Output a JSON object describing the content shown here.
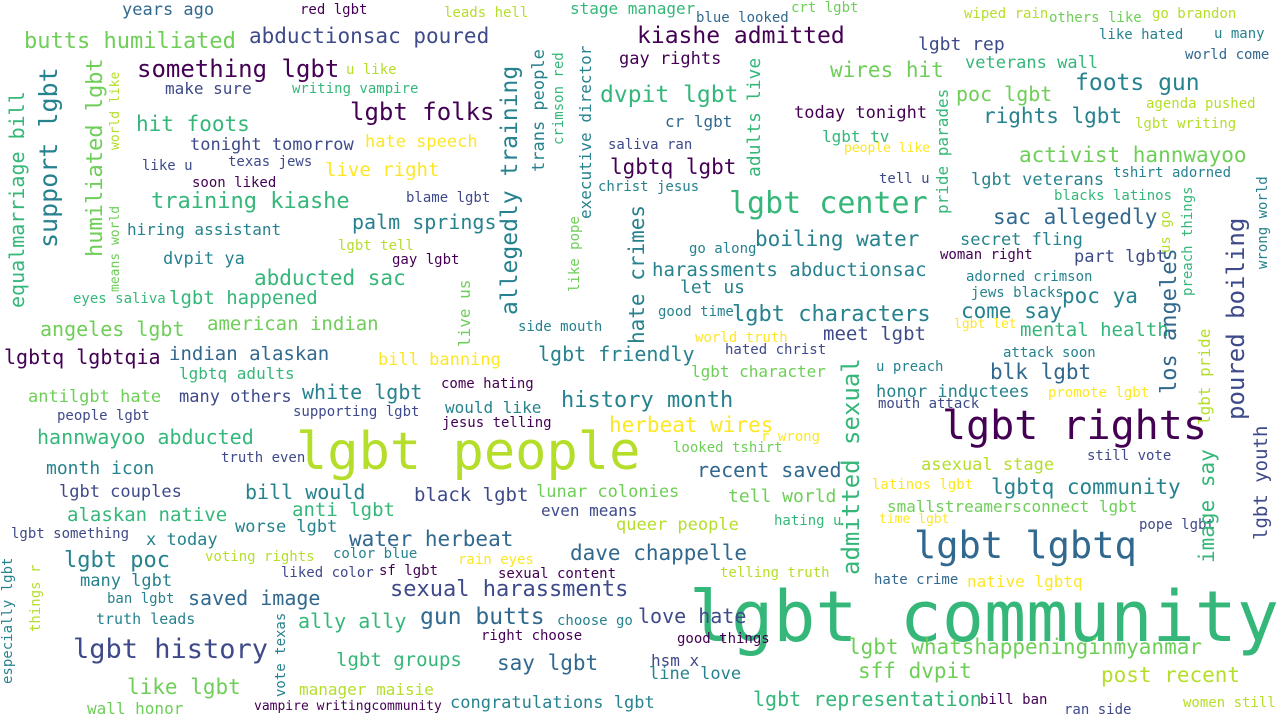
{
  "palette": {
    "purple": "#440154",
    "indigo": "#3e4a89",
    "blue": "#31688e",
    "teal": "#26828e",
    "green": "#35b779",
    "lime": "#6ece58",
    "yellowgreen": "#b5de2b",
    "yellow": "#fde725"
  },
  "words": [
    {
      "text": "lgbt community",
      "color": "#35b779"
    },
    {
      "text": "lgbt people",
      "color": "#b5de2b"
    },
    {
      "text": "lgbt rights",
      "color": "#440154"
    },
    {
      "text": "lgbt lgbtq",
      "color": "#31688e"
    },
    {
      "text": "lgbt center",
      "color": "#35b779"
    },
    {
      "text": "lgbt history",
      "color": "#3e4a89"
    },
    {
      "text": "kiashe admitted",
      "color": "#440154"
    },
    {
      "text": "something lgbt",
      "color": "#440154"
    },
    {
      "text": "butts humiliated",
      "color": "#6ece58"
    },
    {
      "text": "abductionsac poured",
      "color": "#3e4a89"
    },
    {
      "text": "lgbt folks",
      "color": "#440154"
    },
    {
      "text": "training kiashe",
      "color": "#35b779"
    },
    {
      "text": "dvpit lgbt",
      "color": "#35b779"
    },
    {
      "text": "lgbtq lgbt",
      "color": "#440154"
    },
    {
      "text": "harassments abductionsac",
      "color": "#26828e"
    },
    {
      "text": "lgbt characters",
      "color": "#26828e"
    },
    {
      "text": "history month",
      "color": "#26828e"
    },
    {
      "text": "sexual harassments",
      "color": "#3e4a89"
    },
    {
      "text": "gun butts",
      "color": "#31688e"
    },
    {
      "text": "water herbeat",
      "color": "#31688e"
    },
    {
      "text": "dave chappelle",
      "color": "#31688e"
    },
    {
      "text": "herbeat wires",
      "color": "#fde725"
    },
    {
      "text": "lgbt whatshappeninginmyanmar",
      "color": "#6ece58"
    },
    {
      "text": "sff dvpit",
      "color": "#6ece58"
    },
    {
      "text": "post recent",
      "color": "#b5de2b"
    },
    {
      "text": "lgbt representation",
      "color": "#35b779"
    },
    {
      "text": "lgbtq community",
      "color": "#26828e"
    },
    {
      "text": "blk lgbt",
      "color": "#31688e"
    },
    {
      "text": "abducted sac",
      "color": "#35b779"
    },
    {
      "text": "boiling water",
      "color": "#26828e"
    },
    {
      "text": "foots gun",
      "color": "#26828e"
    },
    {
      "text": "activist hannwayoo",
      "color": "#6ece58"
    },
    {
      "text": "sac allegedly",
      "color": "#31688e"
    },
    {
      "text": "wires hit",
      "color": "#6ece58"
    },
    {
      "text": "hit foots",
      "color": "#35b779"
    },
    {
      "text": "hannwayoo abducted",
      "color": "#35b779"
    },
    {
      "text": "lgbt poc",
      "color": "#26828e"
    },
    {
      "text": "say lgbt",
      "color": "#31688e"
    },
    {
      "text": "white lgbt",
      "color": "#26828e"
    },
    {
      "text": "palm springs",
      "color": "#26828e"
    },
    {
      "text": "lgbt happened",
      "color": "#35b779"
    },
    {
      "text": "american indian",
      "color": "#6ece58"
    },
    {
      "text": "indian alaskan",
      "color": "#31688e"
    },
    {
      "text": "lgbtq lgbtqia",
      "color": "#440154"
    },
    {
      "text": "angeles lgbt",
      "color": "#6ece58"
    },
    {
      "text": "alaskan native",
      "color": "#35b779"
    },
    {
      "text": "bill would",
      "color": "#26828e"
    },
    {
      "text": "recent saved",
      "color": "#31688e"
    },
    {
      "text": "mental health",
      "color": "#35b779"
    },
    {
      "text": "poc ya",
      "color": "#26828e"
    },
    {
      "text": "come say",
      "color": "#26828e"
    },
    {
      "text": "poc lgbt",
      "color": "#6ece58"
    },
    {
      "text": "rights lgbt",
      "color": "#26828e"
    },
    {
      "text": "lgbt friendly",
      "color": "#26828e"
    },
    {
      "text": "saved image",
      "color": "#31688e"
    },
    {
      "text": "lgbt groups",
      "color": "#35b779"
    },
    {
      "text": "like lgbt",
      "color": "#6ece58"
    },
    {
      "text": "ally ally",
      "color": "#35b779"
    },
    {
      "text": "love hate",
      "color": "#3e4a89"
    },
    {
      "text": "black lgbt",
      "color": "#3e4a89"
    },
    {
      "text": "anti lgbt",
      "color": "#35b779"
    },
    {
      "text": "tell world",
      "color": "#6ece58"
    },
    {
      "text": "lgbt veterans",
      "color": "#26828e"
    },
    {
      "text": "live right",
      "color": "#fde725"
    },
    {
      "text": "lgbt rep",
      "color": "#3e4a89"
    },
    {
      "text": "secret fling",
      "color": "#26828e"
    },
    {
      "text": "part lgbt",
      "color": "#3e4a89"
    },
    {
      "text": "meet lgbt",
      "color": "#3e4a89"
    },
    {
      "text": "today tonight",
      "color": "#440154"
    },
    {
      "text": "veterans wall",
      "color": "#35b779"
    },
    {
      "text": "hate speech",
      "color": "#fde725"
    },
    {
      "text": "gay rights",
      "color": "#440154"
    },
    {
      "text": "let us",
      "color": "#26828e"
    },
    {
      "text": "honor inductees",
      "color": "#26828e"
    },
    {
      "text": "asexual stage",
      "color": "#b5de2b"
    },
    {
      "text": "lunar colonies",
      "color": "#6ece58"
    },
    {
      "text": "queer people",
      "color": "#b5de2b"
    },
    {
      "text": "smallstreamersconnect lgbt",
      "color": "#6ece58"
    },
    {
      "text": "many others",
      "color": "#3e4a89"
    },
    {
      "text": "bill banning",
      "color": "#fde725"
    },
    {
      "text": "lgbtq adults",
      "color": "#35b779"
    },
    {
      "text": "antilgbt hate",
      "color": "#6ece58"
    },
    {
      "text": "month icon",
      "color": "#26828e"
    },
    {
      "text": "lgbt couples",
      "color": "#3e4a89"
    },
    {
      "text": "worse lgbt",
      "color": "#26828e"
    },
    {
      "text": "x today",
      "color": "#26828e"
    },
    {
      "text": "many lgbt",
      "color": "#26828e"
    },
    {
      "text": "truth leads",
      "color": "#26828e"
    },
    {
      "text": "manager maisie",
      "color": "#b5de2b"
    },
    {
      "text": "wall honor",
      "color": "#6ece58"
    },
    {
      "text": "congratulations lgbt",
      "color": "#26828e"
    },
    {
      "text": "line love",
      "color": "#26828e"
    },
    {
      "text": "hsm x",
      "color": "#3e4a89"
    },
    {
      "text": "even means",
      "color": "#3e4a89"
    },
    {
      "text": "would like",
      "color": "#26828e"
    },
    {
      "text": "tonight tomorrow",
      "color": "#3e4a89"
    },
    {
      "text": "make sure",
      "color": "#3e4a89"
    },
    {
      "text": "hiring assistant",
      "color": "#26828e"
    },
    {
      "text": "dvpit ya",
      "color": "#26828e"
    },
    {
      "text": "years ago",
      "color": "#31688e"
    },
    {
      "text": "stage manager",
      "color": "#35b779"
    },
    {
      "text": "cr lgbt",
      "color": "#31688e"
    },
    {
      "text": "lgbt tv",
      "color": "#35b779"
    },
    {
      "text": "native lgbtq",
      "color": "#fde725"
    },
    {
      "text": "hate crime",
      "color": "#31688e"
    },
    {
      "text": "still vote",
      "color": "#3e4a89"
    },
    {
      "text": "image say",
      "color": "#35b779"
    },
    {
      "text": "lgbt youth",
      "color": "#3e4a89"
    },
    {
      "text": "los angeles",
      "color": "#31688e"
    },
    {
      "text": "poured boiling",
      "color": "#3e4a89"
    },
    {
      "text": "admitted sexual",
      "color": "#35b779"
    },
    {
      "text": "allegedly training",
      "color": "#26828e"
    },
    {
      "text": "support lgbt",
      "color": "#26828e"
    },
    {
      "text": "humiliated lgbt",
      "color": "#6ece58"
    },
    {
      "text": "equalmarriage bill",
      "color": "#35b779"
    },
    {
      "text": "hate crimes",
      "color": "#26828e"
    },
    {
      "text": "trans people",
      "color": "#26828e"
    },
    {
      "text": "executive director",
      "color": "#26828e"
    },
    {
      "text": "adults live",
      "color": "#35b779"
    },
    {
      "text": "live us",
      "color": "#6ece58"
    },
    {
      "text": "pride parades",
      "color": "#35b779"
    },
    {
      "text": "lgbt pride",
      "color": "#b5de2b"
    },
    {
      "text": "red lgbt",
      "color": "#440154"
    },
    {
      "text": "leads hell",
      "color": "#b5de2b"
    },
    {
      "text": "blue looked",
      "color": "#31688e"
    },
    {
      "text": "crt lgbt",
      "color": "#6ece58"
    },
    {
      "text": "wiped rain",
      "color": "#b5de2b"
    },
    {
      "text": "others like",
      "color": "#6ece58"
    },
    {
      "text": "go brandon",
      "color": "#b5de2b"
    },
    {
      "text": "u many",
      "color": "#26828e"
    },
    {
      "text": "like hated",
      "color": "#26828e"
    },
    {
      "text": "world come",
      "color": "#31688e"
    },
    {
      "text": "agenda pushed",
      "color": "#b5de2b"
    },
    {
      "text": "lgbt writing",
      "color": "#b5de2b"
    },
    {
      "text": "tshirt adorned",
      "color": "#26828e"
    },
    {
      "text": "blacks latinos",
      "color": "#35b779"
    },
    {
      "text": "u like",
      "color": "#b5de2b"
    },
    {
      "text": "writing vampire",
      "color": "#35b779"
    },
    {
      "text": "like u",
      "color": "#3e4a89"
    },
    {
      "text": "texas jews",
      "color": "#3e4a89"
    },
    {
      "text": "soon liked",
      "color": "#440154"
    },
    {
      "text": "blame lgbt",
      "color": "#3e4a89"
    },
    {
      "text": "saliva ran",
      "color": "#3e4a89"
    },
    {
      "text": "christ jesus",
      "color": "#26828e"
    },
    {
      "text": "people like",
      "color": "#fde725"
    },
    {
      "text": "tell u",
      "color": "#3e4a89"
    },
    {
      "text": "lgbt tell",
      "color": "#b5de2b"
    },
    {
      "text": "gay lgbt",
      "color": "#440154"
    },
    {
      "text": "go along",
      "color": "#26828e"
    },
    {
      "text": "woman right",
      "color": "#440154"
    },
    {
      "text": "adorned crimson",
      "color": "#26828e"
    },
    {
      "text": "jews blacks",
      "color": "#26828e"
    },
    {
      "text": "eyes saliva",
      "color": "#35b779"
    },
    {
      "text": "good time",
      "color": "#26828e"
    },
    {
      "text": "side mouth",
      "color": "#26828e"
    },
    {
      "text": "world truth",
      "color": "#fde725"
    },
    {
      "text": "hated christ",
      "color": "#3e4a89"
    },
    {
      "text": "lgbt let",
      "color": "#fde725"
    },
    {
      "text": "attack soon",
      "color": "#26828e"
    },
    {
      "text": "u preach",
      "color": "#26828e"
    },
    {
      "text": "promote lgbt",
      "color": "#fde725"
    },
    {
      "text": "mouth attack",
      "color": "#3e4a89"
    },
    {
      "text": "come hating",
      "color": "#440154"
    },
    {
      "text": "people lgbt",
      "color": "#3e4a89"
    },
    {
      "text": "supporting lgbt",
      "color": "#3e4a89"
    },
    {
      "text": "jesus telling",
      "color": "#440154"
    },
    {
      "text": "truth even",
      "color": "#3e4a89"
    },
    {
      "text": "lgbt character",
      "color": "#6ece58"
    },
    {
      "text": "looked tshirt",
      "color": "#6ece58"
    },
    {
      "text": "r wrong",
      "color": "#fde725"
    },
    {
      "text": "latinos lgbt",
      "color": "#fde725"
    },
    {
      "text": "time lgbt",
      "color": "#fde725"
    },
    {
      "text": "hating u",
      "color": "#35b779"
    },
    {
      "text": "pope lgbt",
      "color": "#3e4a89"
    },
    {
      "text": "lgbt something",
      "color": "#3e4a89"
    },
    {
      "text": "voting rights",
      "color": "#b5de2b"
    },
    {
      "text": "color blue",
      "color": "#26828e"
    },
    {
      "text": "rain eyes",
      "color": "#fde725"
    },
    {
      "text": "liked color",
      "color": "#3e4a89"
    },
    {
      "text": "sf lgbt",
      "color": "#440154"
    },
    {
      "text": "sexual content",
      "color": "#440154"
    },
    {
      "text": "telling truth",
      "color": "#b5de2b"
    },
    {
      "text": "ban lgbt",
      "color": "#26828e"
    },
    {
      "text": "choose go",
      "color": "#26828e"
    },
    {
      "text": "right choose",
      "color": "#440154"
    },
    {
      "text": "good things",
      "color": "#440154"
    },
    {
      "text": "vampire writingcommunity",
      "color": "#440154"
    },
    {
      "text": "bill ban",
      "color": "#440154"
    },
    {
      "text": "ran side",
      "color": "#3e4a89"
    },
    {
      "text": "women still",
      "color": "#b5de2b"
    },
    {
      "text": "vote texas",
      "color": "#26828e"
    },
    {
      "text": "especially lgbt",
      "color": "#26828e"
    },
    {
      "text": "things r",
      "color": "#b5de2b"
    },
    {
      "text": "world like",
      "color": "#b5de2b"
    },
    {
      "text": "means world",
      "color": "#6ece58"
    },
    {
      "text": "crimson red",
      "color": "#35b779"
    },
    {
      "text": "like pope",
      "color": "#6ece58"
    },
    {
      "text": "us go",
      "color": "#b5de2b"
    },
    {
      "text": "preach things",
      "color": "#35b779"
    },
    {
      "text": "wrong world",
      "color": "#26828e"
    }
  ]
}
